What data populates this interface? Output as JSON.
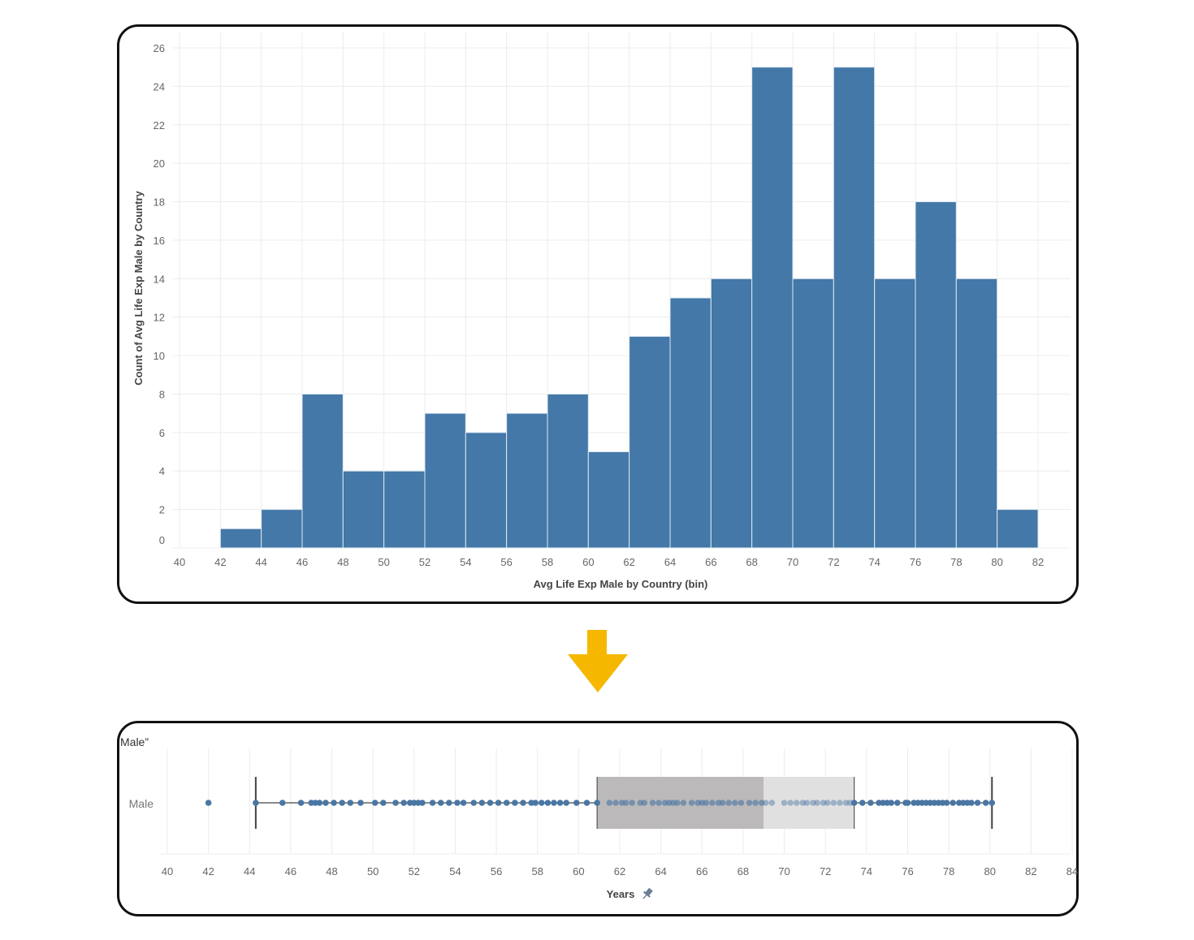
{
  "chart_data": [
    {
      "type": "bar",
      "xlabel": "Avg Life Exp Male by Country (bin)",
      "ylabel": "Count of Avg Life Exp Male by Country",
      "xlim": [
        40,
        82
      ],
      "ylim": [
        0,
        26
      ],
      "x_ticks": [
        "40",
        "42",
        "44",
        "46",
        "48",
        "50",
        "52",
        "54",
        "56",
        "58",
        "60",
        "62",
        "64",
        "66",
        "68",
        "70",
        "72",
        "74",
        "76",
        "78",
        "80",
        "82"
      ],
      "y_ticks": [
        "0",
        "2",
        "4",
        "6",
        "8",
        "10",
        "12",
        "14",
        "16",
        "18",
        "20",
        "22",
        "24",
        "26"
      ],
      "bin_start": [
        42,
        44,
        46,
        48,
        50,
        52,
        54,
        56,
        58,
        60,
        62,
        64,
        66,
        68,
        70,
        72,
        74,
        76,
        78,
        80
      ],
      "bin_width": 2,
      "values": [
        1,
        2,
        8,
        4,
        4,
        7,
        6,
        7,
        8,
        5,
        11,
        13,
        14,
        25,
        14,
        25,
        14,
        18,
        14,
        2
      ],
      "grid": true,
      "bar_color": "#4378a8"
    },
    {
      "type": "scatter",
      "row_header": "Male”",
      "row_label": "Male",
      "xlabel": "Years",
      "xlim": [
        40,
        84
      ],
      "x_ticks": [
        "40",
        "42",
        "44",
        "46",
        "48",
        "50",
        "52",
        "54",
        "56",
        "58",
        "60",
        "62",
        "64",
        "66",
        "68",
        "70",
        "72",
        "74",
        "76",
        "78",
        "80",
        "82",
        "84"
      ],
      "box": {
        "whisker_low": 44.3,
        "q1": 60.9,
        "median": 69.0,
        "q3": 73.4,
        "whisker_high": 80.1
      },
      "x": [
        42.0,
        44.3,
        45.6,
        46.5,
        47.0,
        47.2,
        47.4,
        47.7,
        48.1,
        48.5,
        48.9,
        49.4,
        50.1,
        50.5,
        51.1,
        51.5,
        51.8,
        52.0,
        52.2,
        52.4,
        52.9,
        53.3,
        53.7,
        54.1,
        54.4,
        54.9,
        55.3,
        55.7,
        56.1,
        56.5,
        56.9,
        57.3,
        57.7,
        57.9,
        58.2,
        58.5,
        58.8,
        59.1,
        59.4,
        59.9,
        60.4,
        60.9,
        61.5,
        61.8,
        62.1,
        62.3,
        62.6,
        63.0,
        63.2,
        63.6,
        63.9,
        64.2,
        64.4,
        64.6,
        64.8,
        65.1,
        65.5,
        65.8,
        66.0,
        66.2,
        66.5,
        66.8,
        67.0,
        67.3,
        67.6,
        67.9,
        68.3,
        68.6,
        68.9,
        69.1,
        69.4,
        70.0,
        70.3,
        70.6,
        70.9,
        71.1,
        71.4,
        71.6,
        71.9,
        72.1,
        72.4,
        72.7,
        73.0,
        73.2,
        73.4,
        73.8,
        74.2,
        74.6,
        74.8,
        75.0,
        75.2,
        75.5,
        75.9,
        76.0,
        76.3,
        76.5,
        76.7,
        76.9,
        77.1,
        77.3,
        77.5,
        77.7,
        77.9,
        78.2,
        78.5,
        78.7,
        78.9,
        79.1,
        79.4,
        79.8,
        80.1
      ],
      "dot_color": "#4a76a3",
      "box_color_low": "#bcb9ba",
      "box_color_high": "#e0e0e0"
    }
  ],
  "colors": {
    "arrow": "#f5b700",
    "border": "#111111"
  }
}
